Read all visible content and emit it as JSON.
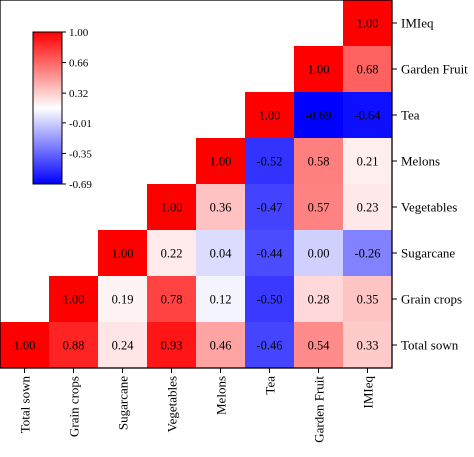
{
  "chart_data": {
    "type": "heatmap",
    "title": "",
    "layout": "lower-triangle, diagonal rising from bottom-left to top-right",
    "x_categories": [
      "Total sown",
      "Grain crops",
      "Sugarcane",
      "Vegetables",
      "Melons",
      "Tea",
      "Garden Fruit",
      "IMIeq"
    ],
    "y_categories": [
      "IMIeq",
      "Garden Fruit",
      "Tea",
      "Melons",
      "Vegetables",
      "Sugarcane",
      "Grain crops",
      "Total sown"
    ],
    "values": [
      [
        null,
        null,
        null,
        null,
        null,
        null,
        null,
        1.0
      ],
      [
        null,
        null,
        null,
        null,
        null,
        null,
        1.0,
        0.68
      ],
      [
        null,
        null,
        null,
        null,
        null,
        1.0,
        -0.69,
        -0.64
      ],
      [
        null,
        null,
        null,
        null,
        1.0,
        -0.52,
        0.58,
        0.21
      ],
      [
        null,
        null,
        null,
        1.0,
        0.36,
        -0.47,
        0.57,
        0.23
      ],
      [
        null,
        null,
        1.0,
        0.22,
        0.04,
        -0.44,
        0.0,
        -0.26
      ],
      [
        null,
        1.0,
        0.19,
        0.78,
        0.12,
        -0.5,
        0.28,
        0.35
      ],
      [
        1.0,
        0.88,
        0.24,
        0.93,
        0.46,
        -0.46,
        0.54,
        0.33
      ]
    ],
    "value_labels": [
      [
        null,
        null,
        null,
        null,
        null,
        null,
        null,
        "1.00"
      ],
      [
        null,
        null,
        null,
        null,
        null,
        null,
        "1.00",
        "0.68"
      ],
      [
        null,
        null,
        null,
        null,
        null,
        "1.00",
        "-0.69",
        "-0.64"
      ],
      [
        null,
        null,
        null,
        null,
        "1.00",
        "-0.52",
        "0.58",
        "0.21"
      ],
      [
        null,
        null,
        null,
        "1.00",
        "0.36",
        "-0.47",
        "0.57",
        "0.23"
      ],
      [
        null,
        null,
        "1.00",
        "0.22",
        "0.04",
        "-0.44",
        "0.00",
        "-0.26"
      ],
      [
        null,
        "1.00",
        "0.19",
        "0.78",
        "0.12",
        "-0.50",
        "0.28",
        "0.35"
      ],
      [
        "1.00",
        "0.88",
        "0.24",
        "0.93",
        "0.46",
        "-0.46",
        "0.54",
        "0.33"
      ]
    ],
    "colorbar": {
      "min": -0.69,
      "max": 1.0,
      "ticks": [
        1.0,
        0.66,
        0.32,
        -0.01,
        -0.35,
        -0.69
      ],
      "tick_labels": [
        "1.00",
        "0.66",
        "0.32",
        "-0.01",
        "-0.35",
        "-0.69"
      ],
      "colors": {
        "low": "#0000ff",
        "mid": "#ffffff",
        "high": "#ff0000"
      },
      "placement": "upper-left inset"
    },
    "grid": false
  }
}
